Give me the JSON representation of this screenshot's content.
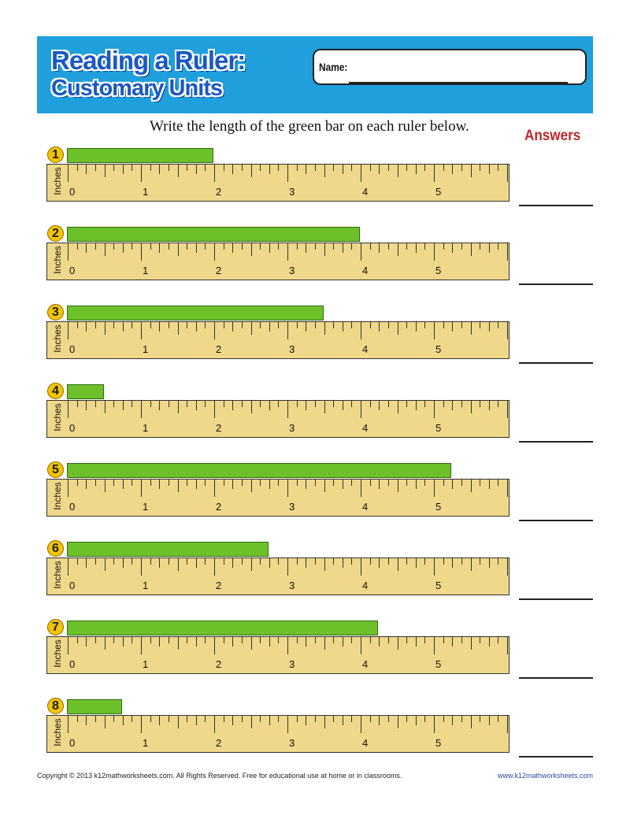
{
  "header": {
    "title_line1": "Reading a Ruler:",
    "title_line2": "Customary Units",
    "name_label": "Name:"
  },
  "instruction": "Write the length of the green bar on each ruler below.",
  "answers_title": "Answers",
  "ruler": {
    "unit_label": "Inches",
    "numbers": [
      "0",
      "1",
      "2",
      "3",
      "4",
      "5"
    ],
    "length_inches": 6,
    "tick_fraction": 0.125
  },
  "problems": [
    {
      "number": "1",
      "bar_length_inches": 2.0
    },
    {
      "number": "2",
      "bar_length_inches": 4.0
    },
    {
      "number": "3",
      "bar_length_inches": 3.5
    },
    {
      "number": "4",
      "bar_length_inches": 0.5
    },
    {
      "number": "5",
      "bar_length_inches": 5.25
    },
    {
      "number": "6",
      "bar_length_inches": 2.75
    },
    {
      "number": "7",
      "bar_length_inches": 4.25
    },
    {
      "number": "8",
      "bar_length_inches": 0.75
    }
  ],
  "footer": {
    "copyright": "Copyright © 2013  k12mathworksheets.com. All Rights Reserved. Free for educational use at home or in classrooms.",
    "website": "www.k12mathworksheets.com"
  },
  "colors": {
    "header_bg": "#1fa0dc",
    "title": "#1b58c4",
    "bar_green": "#6dc02a",
    "ruler_yellow": "#efd88a",
    "badge_yellow": "#f3c400",
    "answers_red": "#c0282d"
  }
}
